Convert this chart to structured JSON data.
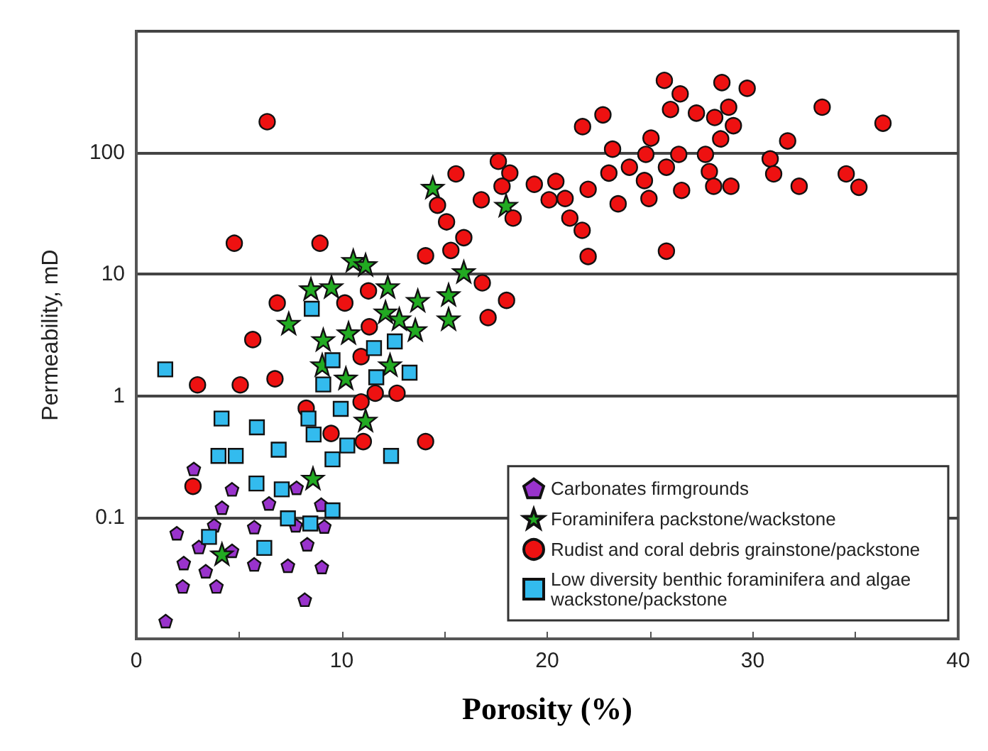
{
  "chart_data": {
    "type": "scatter",
    "xlabel": "Porosity (%)",
    "ylabel": "Permeability, mD",
    "xlim": [
      0,
      40
    ],
    "xticks": [
      0,
      {
        "value": 5,
        "label": null
      },
      10,
      {
        "value": 15,
        "label": null
      },
      20,
      {
        "value": 25,
        "label": null
      },
      30,
      {
        "value": 35,
        "label": null
      },
      40
    ],
    "ylim": [
      0.01,
      1000
    ],
    "yticks": [
      {
        "value": 0.01,
        "label": null
      },
      0.1,
      1,
      10,
      100,
      {
        "value": 1000,
        "label": null
      }
    ],
    "log": "y",
    "grid": "y",
    "legend": "bottom right",
    "series": [
      {
        "name": "Carbonates firmgrounds",
        "color": "#9933cc",
        "x": [
          2.8,
          4.66,
          4.17,
          6.46,
          7.8,
          9.0,
          3.79,
          1.97,
          5.74,
          7.76,
          9.15,
          3.05,
          4.66,
          8.32,
          2.31,
          3.38,
          5.74,
          7.38,
          9.03,
          2.26,
          3.9,
          8.2,
          1.43
        ],
        "values": [
          0.25,
          0.17,
          0.12,
          0.13,
          0.175,
          0.127,
          0.086,
          0.074,
          0.083,
          0.086,
          0.084,
          0.057,
          0.053,
          0.06,
          0.042,
          0.036,
          0.041,
          0.04,
          0.039,
          0.027,
          0.027,
          0.021,
          0.014
        ]
      },
      {
        "name": "Foraminifera packstone/wackstone",
        "color": "#22aa22",
        "marker": "star",
        "x": [
          10.56,
          11.16,
          8.5,
          9.5,
          12.24,
          7.42,
          12.13,
          12.8,
          9.1,
          10.33,
          12.35,
          9.05,
          10.2,
          11.16,
          8.6,
          4.17,
          14.43,
          18.0,
          15.94,
          13.7,
          15.2,
          15.2,
          13.58
        ],
        "values": [
          13,
          12,
          7.6,
          7.9,
          7.9,
          3.95,
          4.9,
          4.3,
          2.9,
          3.3,
          1.8,
          1.8,
          1.4,
          0.63,
          0.21,
          0.05,
          52,
          37,
          10.5,
          6.1,
          6.8,
          4.3,
          3.5
        ]
      },
      {
        "name": "Rudist and coral debris grainstone/packstone",
        "color": "#ee1111",
        "marker": "circle",
        "x": [
          6.37,
          4.77,
          8.94,
          6.86,
          10.15,
          11.3,
          5.67,
          11.34,
          10.94,
          2.98,
          5.06,
          6.75,
          11.63,
          12.69,
          10.94,
          8.27,
          9.48,
          11.05,
          2.76,
          14.08,
          15.56,
          14.66,
          15.1,
          15.94,
          15.31,
          14.08,
          16.84,
          18.02,
          17.12,
          17.62,
          18.18,
          17.8,
          16.79,
          18.34,
          19.37,
          20.42,
          20.09,
          20.87,
          21.1,
          21.7,
          21.99,
          21.99,
          21.72,
          22.71,
          23.0,
          23.18,
          23.45,
          24.0,
          24.73,
          24.95,
          25.05,
          24.8,
          25.7,
          26.0,
          25.8,
          25.8,
          26.47,
          26.4,
          26.54,
          27.26,
          28.15,
          28.83,
          28.5,
          29.73,
          29.06,
          28.44,
          27.7,
          27.89,
          28.1,
          28.94,
          30.85,
          31.02,
          31.7,
          32.26,
          33.38,
          34.55,
          35.17,
          36.34
        ],
        "values": [
          180,
          18,
          18,
          5.8,
          5.8,
          7.3,
          2.9,
          3.7,
          2.1,
          1.23,
          1.23,
          1.38,
          1.05,
          1.05,
          0.89,
          0.79,
          0.49,
          0.42,
          0.18,
          0.42,
          67,
          37,
          27,
          20,
          15.7,
          14.2,
          8.5,
          6.1,
          4.4,
          85,
          68,
          53,
          41,
          29,
          55,
          58,
          41,
          42,
          29,
          23,
          14,
          50,
          164,
          205,
          68,
          107,
          38,
          76,
          59,
          42,
          132,
          97,
          394,
          227,
          76,
          15.5,
          305,
          97,
          49,
          212,
          195,
          237,
          378,
          339,
          167,
          130,
          97,
          70,
          53,
          53,
          89,
          67,
          125,
          53,
          237,
          67,
          52,
          175
        ]
      },
      {
        "name": "Low diversity benthic foraminifera and algae wackstone/packstone",
        "color": "#33bbee",
        "marker": "square",
        "x": [
          1.41,
          4.15,
          5.87,
          4.0,
          4.84,
          6.93,
          5.85,
          7.08,
          8.38,
          8.63,
          9.95,
          10.27,
          9.55,
          12.4,
          7.38,
          8.47,
          9.55,
          3.54,
          6.23,
          9.1,
          9.55,
          11.68,
          11.57,
          12.58,
          8.54,
          13.3
        ],
        "values": [
          1.65,
          0.65,
          0.55,
          0.32,
          0.32,
          0.36,
          0.19,
          0.17,
          0.65,
          0.48,
          0.78,
          0.39,
          0.3,
          0.32,
          0.098,
          0.089,
          0.114,
          0.069,
          0.056,
          1.24,
          1.96,
          1.42,
          2.47,
          2.8,
          5.2,
          1.55
        ]
      }
    ]
  }
}
